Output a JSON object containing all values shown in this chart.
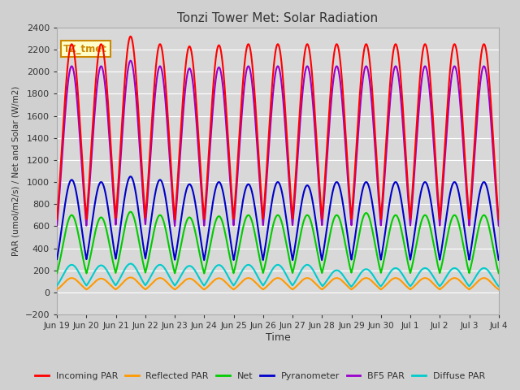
{
  "title": "Tonzi Tower Met: Solar Radiation",
  "ylabel": "PAR (umol/m2/s) / Net and Solar (W/m2)",
  "xlabel": "Time",
  "ylim": [
    -200,
    2400
  ],
  "yticks": [
    -200,
    0,
    200,
    400,
    600,
    800,
    1000,
    1200,
    1400,
    1600,
    1800,
    2000,
    2200,
    2400
  ],
  "fig_bg_color": "#d0d0d0",
  "plot_bg_color": "#d8d8d8",
  "grid_color": "#ffffff",
  "annotation_text": "TZ_tmet",
  "annotation_box_color": "#ffffcc",
  "annotation_border_color": "#cc8800",
  "series": {
    "incoming_par": {
      "color": "#ff0000",
      "label": "Incoming PAR",
      "lw": 1.5
    },
    "reflected_par": {
      "color": "#ff9900",
      "label": "Reflected PAR",
      "lw": 1.5
    },
    "net": {
      "color": "#00cc00",
      "label": "Net",
      "lw": 1.5
    },
    "pyranometer": {
      "color": "#0000cc",
      "label": "Pyranometer",
      "lw": 1.5
    },
    "bf5_par": {
      "color": "#9900cc",
      "label": "BF5 PAR",
      "lw": 1.5
    },
    "diffuse_par": {
      "color": "#00cccc",
      "label": "Diffuse PAR",
      "lw": 1.5
    }
  },
  "x_tick_labels": [
    "Jun 19",
    "Jun 20",
    "Jun 21",
    "Jun 22",
    "Jun 23",
    "Jun 24",
    "Jun 25",
    "Jun 26",
    "Jun 27",
    "Jun 28",
    "Jun 29",
    "Jun 30",
    "Jul 1",
    "Jul 2",
    "Jul 3",
    "Jul 4"
  ],
  "n_days": 15,
  "day_peaks_incoming": [
    2250,
    2250,
    2320,
    2250,
    2230,
    2240,
    2250,
    2250,
    2250,
    2250,
    2250,
    2250,
    2250,
    2250,
    2250
  ],
  "day_peaks_pyrano": [
    1020,
    1000,
    1050,
    1020,
    980,
    1000,
    980,
    1000,
    970,
    1000,
    1000,
    1000,
    1000,
    1000,
    1000
  ],
  "day_peaks_bf5": [
    2050,
    2050,
    2100,
    2050,
    2030,
    2040,
    2050,
    2050,
    2050,
    2050,
    2050,
    2050,
    2050,
    2050,
    2050
  ],
  "day_peaks_net": [
    700,
    680,
    730,
    700,
    680,
    690,
    700,
    700,
    700,
    700,
    720,
    700,
    700,
    700,
    700
  ],
  "day_peaks_refl": [
    130,
    125,
    135,
    130,
    125,
    128,
    130,
    130,
    130,
    130,
    130,
    130,
    130,
    130,
    130
  ],
  "day_peaks_diff": [
    250,
    245,
    260,
    250,
    240,
    248,
    250,
    250,
    250,
    200,
    210,
    220,
    220,
    220,
    220
  ]
}
